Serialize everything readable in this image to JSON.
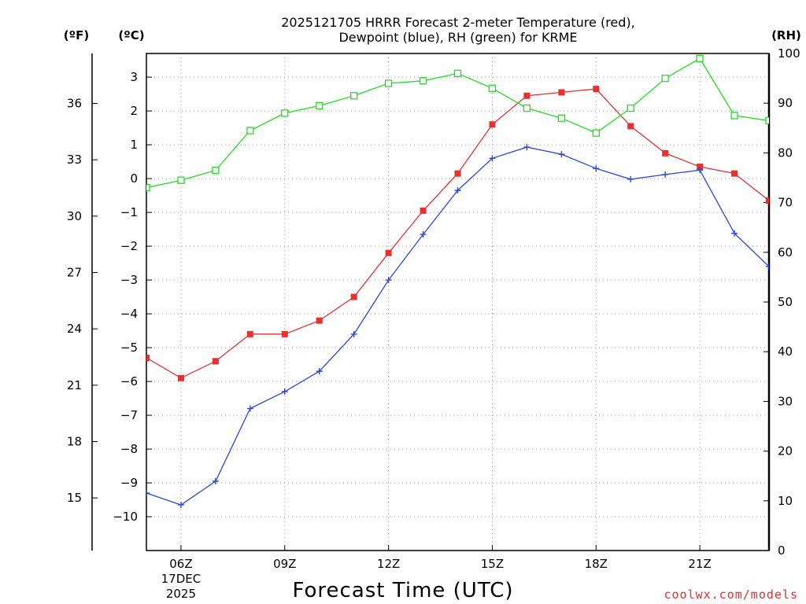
{
  "chart_data": {
    "type": "line",
    "title_line1": "2025121705 HRRR Forecast 2-meter Temperature (red),",
    "title_line2": "Dewpoint (blue), RH (green) for KRME",
    "xlabel": "Forecast Time (UTC)",
    "credit": "coolwx.com/models",
    "units": {
      "fahrenheit": "(ºF)",
      "celsius": "(ºC)",
      "rh": "(RH)"
    },
    "x_hours": [
      5,
      6,
      7,
      8,
      9,
      10,
      11,
      12,
      13,
      14,
      15,
      16,
      17,
      18,
      19,
      20,
      21,
      22,
      23
    ],
    "xlim": [
      5,
      23
    ],
    "x_ticks": [
      {
        "hour": 6,
        "label": "06Z",
        "date": "17DEC",
        "year": "2025"
      },
      {
        "hour": 9,
        "label": "09Z"
      },
      {
        "hour": 12,
        "label": "12Z"
      },
      {
        "hour": 15,
        "label": "15Z"
      },
      {
        "hour": 18,
        "label": "18Z"
      },
      {
        "hour": 21,
        "label": "21Z"
      }
    ],
    "celsius_axis": {
      "ylim": [
        -11,
        3.7
      ],
      "ticks": [
        3,
        2,
        1,
        0,
        -1,
        -2,
        -3,
        -4,
        -5,
        -6,
        -7,
        -8,
        -9,
        -10
      ]
    },
    "fahrenheit_axis": {
      "ticks": [
        36,
        33,
        30,
        27,
        24,
        21,
        18,
        15
      ]
    },
    "rh_axis": {
      "ylim": [
        0,
        100
      ],
      "ticks": [
        100,
        90,
        80,
        70,
        60,
        50,
        40,
        30,
        20,
        10,
        0
      ]
    },
    "series": [
      {
        "name": "Temperature",
        "unit": "C",
        "color": "#e83030",
        "marker": "filled-square",
        "values": [
          -5.3,
          -5.9,
          -5.4,
          -4.6,
          -4.6,
          -4.2,
          -3.5,
          -2.2,
          -0.95,
          0.15,
          1.6,
          2.45,
          2.55,
          2.65,
          1.55,
          0.75,
          0.35,
          0.15,
          -0.65
        ]
      },
      {
        "name": "Dewpoint",
        "unit": "C",
        "color": "#2848e0",
        "marker": "plus",
        "values": [
          -9.3,
          -9.65,
          -8.95,
          -6.8,
          -6.3,
          -5.7,
          -4.6,
          -3.0,
          -1.65,
          -0.35,
          0.6,
          0.93,
          0.72,
          0.3,
          -0.02,
          0.12,
          0.25,
          -1.62,
          -2.6
        ]
      },
      {
        "name": "RH",
        "unit": "%",
        "color": "#20e020",
        "marker": "hollow-square",
        "values": [
          73,
          74.5,
          76.5,
          84.5,
          88,
          89.5,
          91.5,
          94,
          94.5,
          96,
          93,
          89,
          87,
          84,
          89,
          95,
          99,
          87.5,
          86.5
        ]
      }
    ]
  }
}
